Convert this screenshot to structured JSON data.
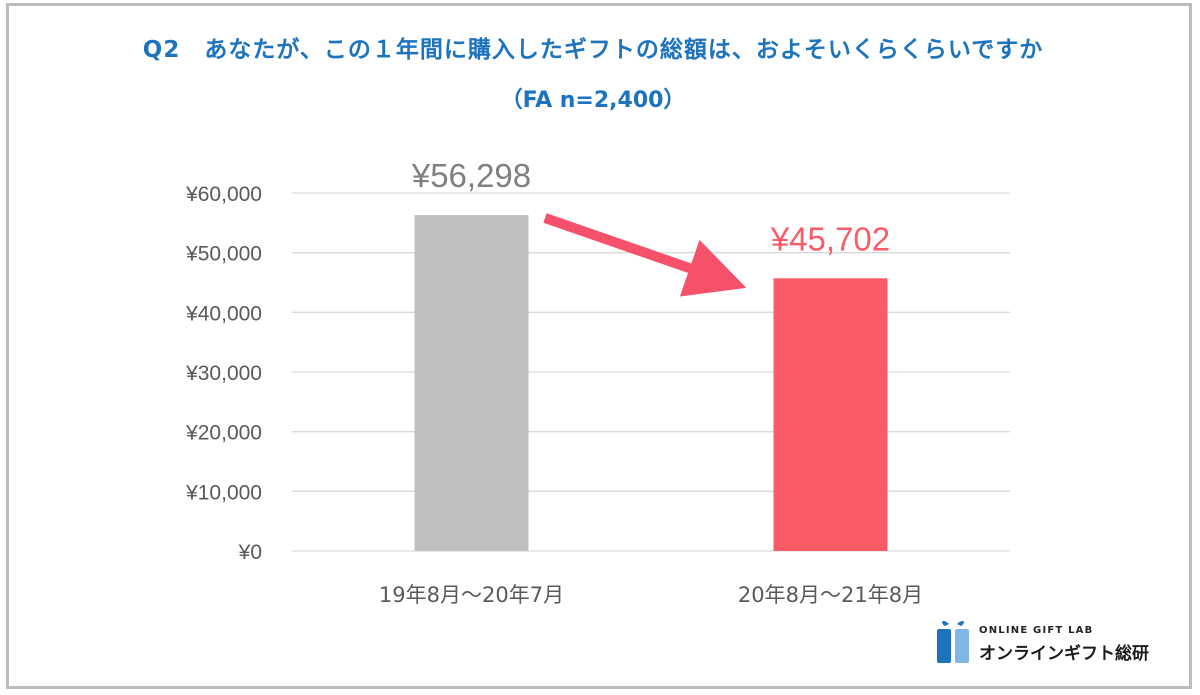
{
  "title": "Q2　あなたが、この１年間に購入したギフトの総額は、およそいくらくらいですか",
  "subtitle": "（FA n=2,400）",
  "colors": {
    "title": "#1d73bd",
    "bar_previous": "#bfbfbf",
    "bar_current": "#f95c67",
    "label_previous": "#808080",
    "label_current": "#f95c67",
    "arrow": "#f5516b"
  },
  "chart_data": {
    "type": "bar",
    "categories": [
      "19年8月～20年7月",
      "20年8月～21年8月"
    ],
    "values": [
      56298,
      45702
    ],
    "data_labels": [
      "¥56,298",
      "¥45,702"
    ],
    "ylim": [
      0,
      60000
    ],
    "yticks": [
      0,
      10000,
      20000,
      30000,
      40000,
      50000,
      60000
    ],
    "ytick_labels": [
      "¥0",
      "¥10,000",
      "¥20,000",
      "¥30,000",
      "¥40,000",
      "¥50,000",
      "¥60,000"
    ],
    "grid": true,
    "annotation": "arrow from first bar to second bar indicating decrease"
  },
  "logo": {
    "small_text": "ONLINE GIFT LAB",
    "big_text": "オンラインギフト総研",
    "icon": "gift-box-icon"
  }
}
